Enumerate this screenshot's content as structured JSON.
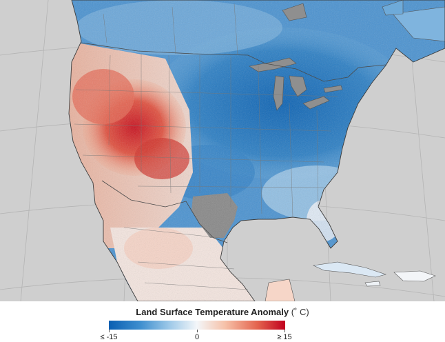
{
  "legend": {
    "title": "Land Surface Temperature Anomaly",
    "unit": "(˚ C)",
    "min_label": "≤ -15",
    "mid_label": "0",
    "max_label": "≥ 15",
    "colors": {
      "cold": "#0a5fb2",
      "neutral": "#f3f6f9",
      "warm": "#c1001e",
      "no_data": "#888888",
      "ocean": "#d0d0d0"
    }
  }
}
